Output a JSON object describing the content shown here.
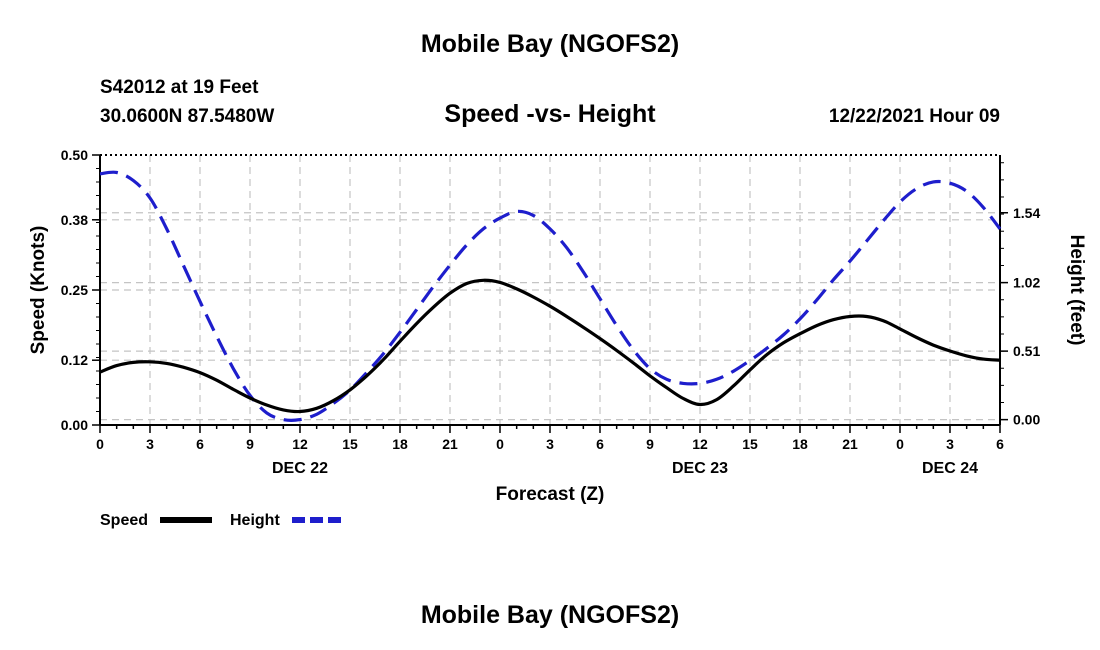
{
  "chart_data": {
    "type": "line",
    "title": "Mobile Bay (NGOFS2)",
    "station": "S42012 at 19 Feet",
    "coordinates": "30.0600N  87.5480W",
    "subtitle": "Speed -vs- Height",
    "datetime": "12/22/2021 Hour 09",
    "xlabel": "Forecast (Z)",
    "ylabel_left": "Speed (Knots)",
    "ylabel_right": "Height (feet)",
    "x_tick_labels": [
      "0",
      "3",
      "6",
      "9",
      "12",
      "15",
      "18",
      "21",
      "0",
      "3",
      "6",
      "9",
      "12",
      "15",
      "18",
      "21",
      "0",
      "3",
      "6"
    ],
    "day_labels": [
      {
        "label": "DEC 22",
        "hour": 12
      },
      {
        "label": "DEC 23",
        "hour": 36
      },
      {
        "label": "DEC 24",
        "hour": 51
      }
    ],
    "xlim": [
      0,
      54
    ],
    "ylim_left": [
      0,
      0.5
    ],
    "left_ticks": [
      0.0,
      0.12,
      0.25,
      0.38,
      0.5
    ],
    "left_tick_labels": [
      "0.00",
      "0.12",
      "0.25",
      "0.38",
      "0.50"
    ],
    "ylim_right": [
      -0.04,
      1.97
    ],
    "right_ticks": [
      0.0,
      0.51,
      1.02,
      1.54
    ],
    "right_tick_labels": [
      "0.00",
      "0.51",
      "1.02",
      "1.54"
    ],
    "series": [
      {
        "name": "Speed",
        "axis": "left",
        "color": "#000000",
        "dash": "solid",
        "x": [
          0,
          1,
          2,
          3,
          4,
          5,
          6,
          7,
          8,
          9,
          10,
          11,
          12,
          13,
          14,
          15,
          16,
          17,
          18,
          19,
          20,
          21,
          22,
          23,
          24,
          25,
          26,
          27,
          28,
          29,
          30,
          31,
          32,
          33,
          34,
          35,
          36,
          37,
          38,
          39,
          40,
          41,
          42,
          43,
          44,
          45,
          46,
          47,
          48,
          49,
          50,
          51,
          52,
          53,
          54
        ],
        "y": [
          0.098,
          0.11,
          0.116,
          0.117,
          0.114,
          0.107,
          0.097,
          0.083,
          0.066,
          0.05,
          0.037,
          0.028,
          0.025,
          0.031,
          0.045,
          0.065,
          0.091,
          0.121,
          0.155,
          0.188,
          0.218,
          0.244,
          0.262,
          0.268,
          0.264,
          0.252,
          0.237,
          0.22,
          0.201,
          0.181,
          0.16,
          0.138,
          0.115,
          0.091,
          0.069,
          0.049,
          0.038,
          0.047,
          0.072,
          0.102,
          0.13,
          0.152,
          0.169,
          0.184,
          0.195,
          0.201,
          0.201,
          0.193,
          0.178,
          0.162,
          0.148,
          0.137,
          0.128,
          0.122,
          0.12
        ]
      },
      {
        "name": "Height",
        "axis": "right",
        "color": "#1e1ecc",
        "dash": "dashed",
        "x": [
          0,
          1,
          2,
          3,
          4,
          5,
          6,
          7,
          8,
          9,
          10,
          11,
          12,
          13,
          14,
          15,
          16,
          17,
          18,
          19,
          20,
          21,
          22,
          23,
          24,
          25,
          26,
          27,
          28,
          29,
          30,
          31,
          32,
          33,
          34,
          35,
          36,
          37,
          38,
          39,
          40,
          41,
          42,
          43,
          44,
          45,
          46,
          47,
          48,
          49,
          50,
          51,
          52,
          53,
          54
        ],
        "y": [
          1.83,
          1.84,
          1.78,
          1.65,
          1.42,
          1.15,
          0.88,
          0.62,
          0.38,
          0.18,
          0.05,
          0.0,
          0.0,
          0.04,
          0.12,
          0.22,
          0.35,
          0.49,
          0.65,
          0.82,
          0.99,
          1.15,
          1.3,
          1.42,
          1.5,
          1.55,
          1.52,
          1.42,
          1.28,
          1.1,
          0.9,
          0.7,
          0.52,
          0.38,
          0.3,
          0.27,
          0.27,
          0.3,
          0.36,
          0.44,
          0.53,
          0.63,
          0.75,
          0.89,
          1.04,
          1.18,
          1.33,
          1.48,
          1.62,
          1.72,
          1.77,
          1.76,
          1.7,
          1.58,
          1.42
        ]
      }
    ],
    "legend": [
      {
        "name": "Speed",
        "color": "#000000",
        "dash": "solid"
      },
      {
        "name": "Height",
        "color": "#1e1ecc",
        "dash": "dashed"
      }
    ],
    "grid": true
  }
}
